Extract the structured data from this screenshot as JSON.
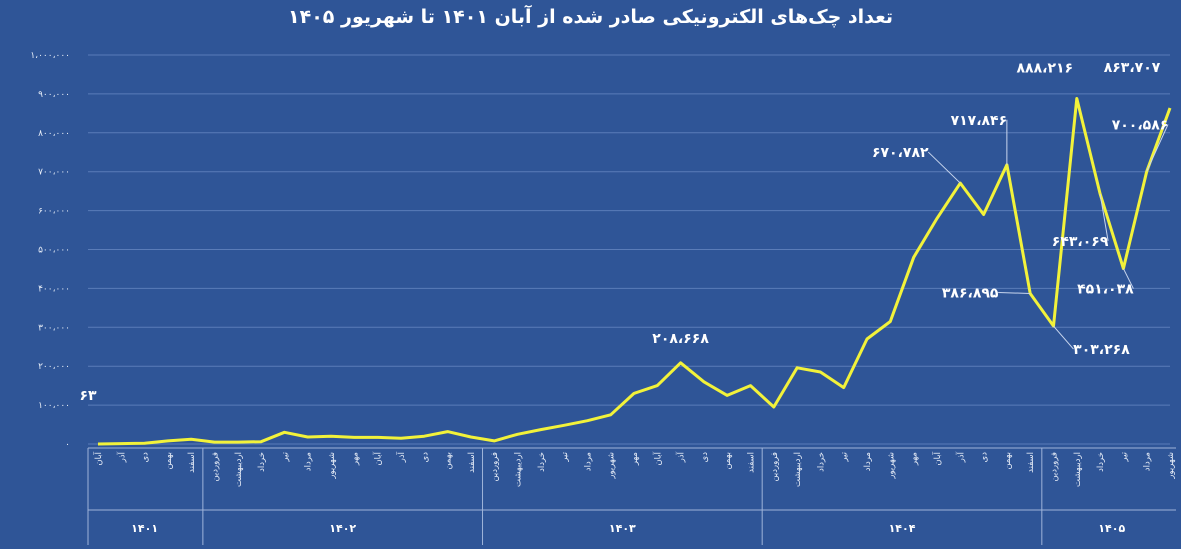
{
  "chart_data": {
    "type": "line",
    "title": "تعداد چک‌های الکترونیکی صادر شده از آبان ۱۴۰۱ تا شهریور ۱۴۰۵",
    "ylim": [
      0,
      1000000
    ],
    "y_ticks": [
      {
        "value": 0,
        "label": "۰"
      },
      {
        "value": 100000,
        "label": "۱۰۰،۰۰۰"
      },
      {
        "value": 200000,
        "label": "۲۰۰،۰۰۰"
      },
      {
        "value": 300000,
        "label": "۳۰۰،۰۰۰"
      },
      {
        "value": 400000,
        "label": "۴۰۰،۰۰۰"
      },
      {
        "value": 500000,
        "label": "۵۰۰،۰۰۰"
      },
      {
        "value": 600000,
        "label": "۶۰۰،۰۰۰"
      },
      {
        "value": 700000,
        "label": "۷۰۰،۰۰۰"
      },
      {
        "value": 800000,
        "label": "۸۰۰،۰۰۰"
      },
      {
        "value": 900000,
        "label": "۹۰۰،۰۰۰"
      },
      {
        "value": 1000000,
        "label": "۱،۰۰۰،۰۰۰"
      }
    ],
    "grid": true,
    "categories": [
      "آبان",
      "آذر",
      "دی",
      "بهمن",
      "اسفند",
      "فروردین",
      "اردیبهشت",
      "خرداد",
      "تیر",
      "مرداد",
      "شهریور",
      "مهر",
      "آبان",
      "آذر",
      "دی",
      "بهمن",
      "اسفند",
      "فروردین",
      "اردیبهشت",
      "خرداد",
      "تیر",
      "مرداد",
      "شهریور",
      "مهر",
      "آبان",
      "آذر",
      "دی",
      "بهمن",
      "اسفند",
      "فروردین",
      "اردیبهشت",
      "خرداد",
      "تیر",
      "مرداد",
      "شهریور",
      "مهر",
      "آبان",
      "آذر",
      "دی",
      "بهمن",
      "اسفند",
      "فروردین",
      "اردیبهشت",
      "خرداد",
      "تیر",
      "مرداد",
      "شهریور"
    ],
    "year_groups": [
      {
        "label": "۱۴۰۱",
        "count": 5
      },
      {
        "label": "۱۴۰۲",
        "count": 12
      },
      {
        "label": "۱۴۰۳",
        "count": 12
      },
      {
        "label": "۱۴۰۴",
        "count": 12
      },
      {
        "label": "۱۴۰۵",
        "count": 6
      }
    ],
    "series": [
      {
        "color": "#f2f23a",
        "values": [
          63,
          1000,
          2000,
          8000,
          12000,
          5000,
          5000,
          6000,
          30000,
          18000,
          20000,
          17000,
          17000,
          15000,
          20000,
          32000,
          18000,
          8000,
          25000,
          37000,
          48000,
          60000,
          75000,
          130000,
          150000,
          208668,
          160000,
          125000,
          150000,
          95000,
          196000,
          185000,
          145000,
          270000,
          315000,
          480000,
          580000,
          670782,
          590000,
          717846,
          386895,
          303268,
          888216,
          643069,
          451038,
          700586,
          863707
        ]
      }
    ],
    "data_labels": [
      {
        "index": 0,
        "text": "۶۳"
      },
      {
        "index": 25,
        "text": "۲۰۸،۶۶۸"
      },
      {
        "index": 37,
        "text": "۶۷۰،۷۸۲"
      },
      {
        "index": 39,
        "text": "۷۱۷،۸۴۶"
      },
      {
        "index": 40,
        "text": "۳۸۶،۸۹۵"
      },
      {
        "index": 41,
        "text": "۳۰۳،۲۶۸"
      },
      {
        "index": 42,
        "text": "۸۸۸،۲۱۶"
      },
      {
        "index": 43,
        "text": "۶۴۳،۰۶۹"
      },
      {
        "index": 44,
        "text": "۴۵۱،۰۳۸"
      },
      {
        "index": 45,
        "text": "۷۰۰،۵۸۶"
      },
      {
        "index": 46,
        "text": "۸۶۳،۷۰۷"
      }
    ]
  }
}
